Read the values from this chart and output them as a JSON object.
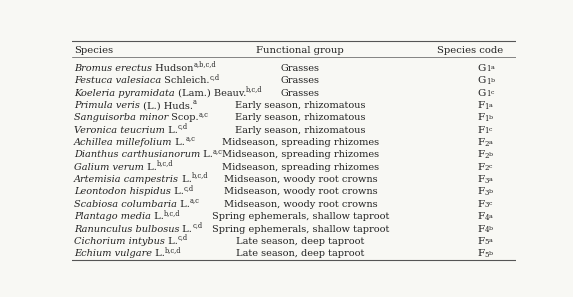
{
  "headers": [
    "Species",
    "Functional group",
    "Species code"
  ],
  "rows_italic": [
    "Bromus erectus",
    "Festuca valesiaca",
    "Koeleria pyramidata",
    "Primula veris",
    "Sanguisorba minor",
    "Veronica teucrium",
    "Achillea millefolium",
    "Dianthus carthusianorum",
    "Galium verum",
    "Artemisia campestris",
    "Leontodon hispidus",
    "Scabiosa columbaria",
    "Plantago media",
    "Ranunculus bulbosus",
    "Cichorium intybus",
    "Echium vulgare"
  ],
  "rows_normal": [
    " Hudson",
    " Schleich.",
    " (Lam.) Beauv.",
    " (L.) Huds.",
    " Scop.",
    " L.",
    " L.",
    " L.",
    " L.",
    " L.",
    " L.",
    " L.",
    " L.",
    " L.",
    " L.",
    " L."
  ],
  "rows_superscript": [
    "a,b,c,d",
    "c,d",
    "b,c,d",
    "a",
    "a,c",
    "c,d",
    "a,c",
    "a,c",
    "b,c,d",
    "b,c,d",
    "c,d",
    "a,c",
    "b,c,d",
    "c,d",
    "c,d",
    "b,c,d"
  ],
  "rows_functional": [
    "Grasses",
    "Grasses",
    "Grasses",
    "Early season, rhizomatous",
    "Early season, rhizomatous",
    "Early season, rhizomatous",
    "Midseason, spreading rhizomes",
    "Midseason, spreading rhizomes",
    "Midseason, spreading rhizomes",
    "Midseason, woody root crowns",
    "Midseason, woody root crowns",
    "Midseason, woody root crowns",
    "Spring ephemerals, shallow taproot",
    "Spring ephemerals, shallow taproot",
    "Late season, deep taproot",
    "Late season, deep taproot"
  ],
  "rows_code_letter": [
    "G",
    "G",
    "G",
    "F",
    "F",
    "F",
    "F",
    "F",
    "F",
    "F",
    "F",
    "F",
    "F",
    "F",
    "F",
    "F"
  ],
  "rows_code_num": [
    "1",
    "1",
    "1",
    "1",
    "1",
    "1",
    "2",
    "2",
    "2",
    "3",
    "3",
    "3",
    "4",
    "4",
    "5",
    "5"
  ],
  "rows_code_sub": [
    "a",
    "b",
    "c",
    "a",
    "b",
    "c",
    "a",
    "b",
    "c",
    "a",
    "b",
    "c",
    "a",
    "b",
    "a",
    "b"
  ],
  "bg_color": "#f8f8f4",
  "text_color": "#222222",
  "line_color": "#555555",
  "font_size": 7.0,
  "header_font_size": 7.2,
  "sup_font_size": 4.8,
  "sub_font_size": 5.2,
  "code_main_size": 7.5,
  "code_sub_size": 5.0
}
